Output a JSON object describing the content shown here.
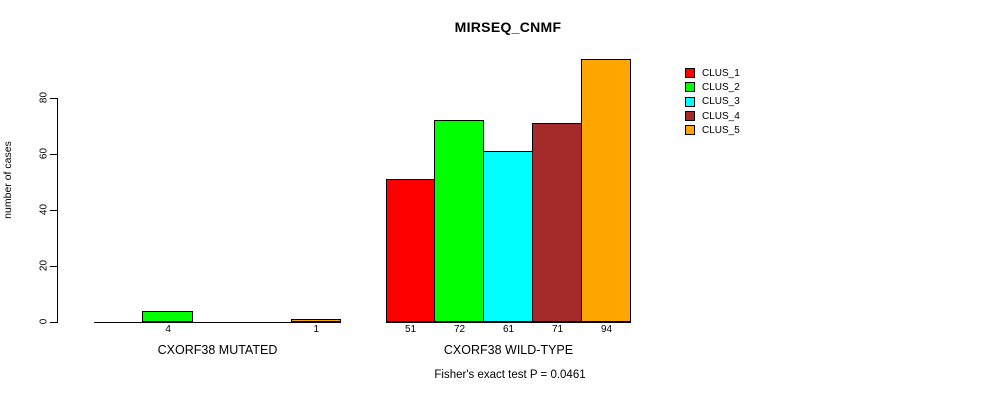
{
  "title": "MIRSEQ_CNMF",
  "y_axis": {
    "label": "number of cases",
    "ticks": [
      "0",
      "20",
      "40",
      "60",
      "80"
    ]
  },
  "legend": {
    "items": [
      {
        "label": "CLUS_1",
        "color": "#FF0000"
      },
      {
        "label": "CLUS_2",
        "color": "#00FF00"
      },
      {
        "label": "CLUS_3",
        "color": "#00FFFF"
      },
      {
        "label": "CLUS_4",
        "color": "#A52A2A"
      },
      {
        "label": "CLUS_5",
        "color": "#FFA500"
      }
    ]
  },
  "groups": [
    {
      "label": "CXORF38 MUTATED",
      "values": [
        0,
        4,
        0,
        0,
        1
      ],
      "bar_labels": [
        "",
        "4",
        "",
        "",
        "1"
      ]
    },
    {
      "label": "CXORF38 WILD-TYPE",
      "values": [
        51,
        72,
        61,
        71,
        94
      ],
      "bar_labels": [
        "51",
        "72",
        "61",
        "71",
        "94"
      ]
    }
  ],
  "footer": "Fisher's exact test P = 0.0461",
  "chart_data": {
    "type": "bar",
    "title": "MIRSEQ_CNMF",
    "xlabel": "",
    "ylabel": "number of cases",
    "ylim": [
      0,
      94
    ],
    "yticks": [
      0,
      20,
      40,
      60,
      80
    ],
    "grid": false,
    "legend_position": "right",
    "categories": [
      "CXORF38 MUTATED",
      "CXORF38 WILD-TYPE"
    ],
    "series": [
      {
        "name": "CLUS_1",
        "color": "#FF0000",
        "values": [
          0,
          51
        ]
      },
      {
        "name": "CLUS_2",
        "color": "#00FF00",
        "values": [
          4,
          72
        ]
      },
      {
        "name": "CLUS_3",
        "color": "#00FFFF",
        "values": [
          0,
          61
        ]
      },
      {
        "name": "CLUS_4",
        "color": "#A52A2A",
        "values": [
          0,
          71
        ]
      },
      {
        "name": "CLUS_5",
        "color": "#FFA500",
        "values": [
          1,
          94
        ]
      }
    ],
    "annotation": "Fisher's exact test P = 0.0461"
  }
}
